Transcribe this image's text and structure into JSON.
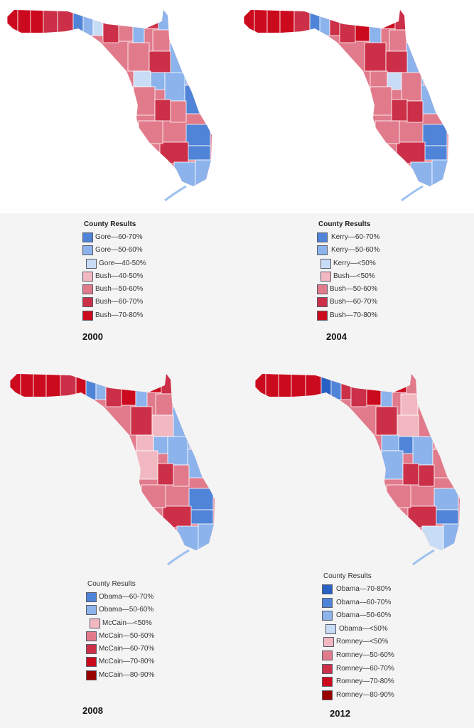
{
  "panels": [
    {
      "year": "2000",
      "legend_title": "County Results",
      "legend": [
        {
          "label": "Gore—60-70%",
          "color": "#4f84d8"
        },
        {
          "label": "Gore—50-60%",
          "color": "#8cb3ec"
        },
        {
          "label": "Gore—40-50%",
          "color": "#c9dcf6"
        },
        {
          "label": "Bush—40-50%",
          "color": "#f2b8c1"
        },
        {
          "label": "Bush—50-60%",
          "color": "#e17b8c"
        },
        {
          "label": "Bush—60-70%",
          "color": "#cc3048"
        },
        {
          "label": "Bush—70-80%",
          "color": "#cc0a1e"
        }
      ]
    },
    {
      "year": "2004",
      "legend_title": "County Results",
      "legend": [
        {
          "label": "Kerry—60-70%",
          "color": "#4f84d8"
        },
        {
          "label": "Kerry—50-60%",
          "color": "#8cb3ec"
        },
        {
          "label": "Kerry—<50%",
          "color": "#c9dcf6"
        },
        {
          "label": "Bush—<50%",
          "color": "#f2b8c1"
        },
        {
          "label": "Bush—50-60%",
          "color": "#e17b8c"
        },
        {
          "label": "Bush—60-70%",
          "color": "#cc3048"
        },
        {
          "label": "Bush—70-80%",
          "color": "#cc0a1e"
        }
      ]
    },
    {
      "year": "2008",
      "legend_title": "County Results",
      "legend": [
        {
          "label": "Obama—60-70%",
          "color": "#4f84d8"
        },
        {
          "label": "Obama—50-60%",
          "color": "#8cb3ec"
        },
        {
          "label": "McCain—<50%",
          "color": "#f2b8c1"
        },
        {
          "label": "McCain—50-60%",
          "color": "#e17b8c"
        },
        {
          "label": "McCain—60-70%",
          "color": "#cc3048"
        },
        {
          "label": "McCain—70-80%",
          "color": "#cc0a1e"
        },
        {
          "label": "McCain—80-90%",
          "color": "#990000"
        }
      ]
    },
    {
      "year": "2012",
      "legend_title": "County Results",
      "legend": [
        {
          "label": "Obama—70-80%",
          "color": "#2860c4"
        },
        {
          "label": "Obama—60-70%",
          "color": "#4f84d8"
        },
        {
          "label": "Obama—50-60%",
          "color": "#8cb3ec"
        },
        {
          "label": "Obama—<50%",
          "color": "#c9dcf6"
        },
        {
          "label": "Romney—<50%",
          "color": "#f2b8c1"
        },
        {
          "label": "Romney—50-60%",
          "color": "#e17b8c"
        },
        {
          "label": "Romney—60-70%",
          "color": "#cc3048"
        },
        {
          "label": "Romney—70-80%",
          "color": "#cc0a1e"
        },
        {
          "label": "Romney—80-90%",
          "color": "#990000"
        }
      ]
    }
  ]
}
